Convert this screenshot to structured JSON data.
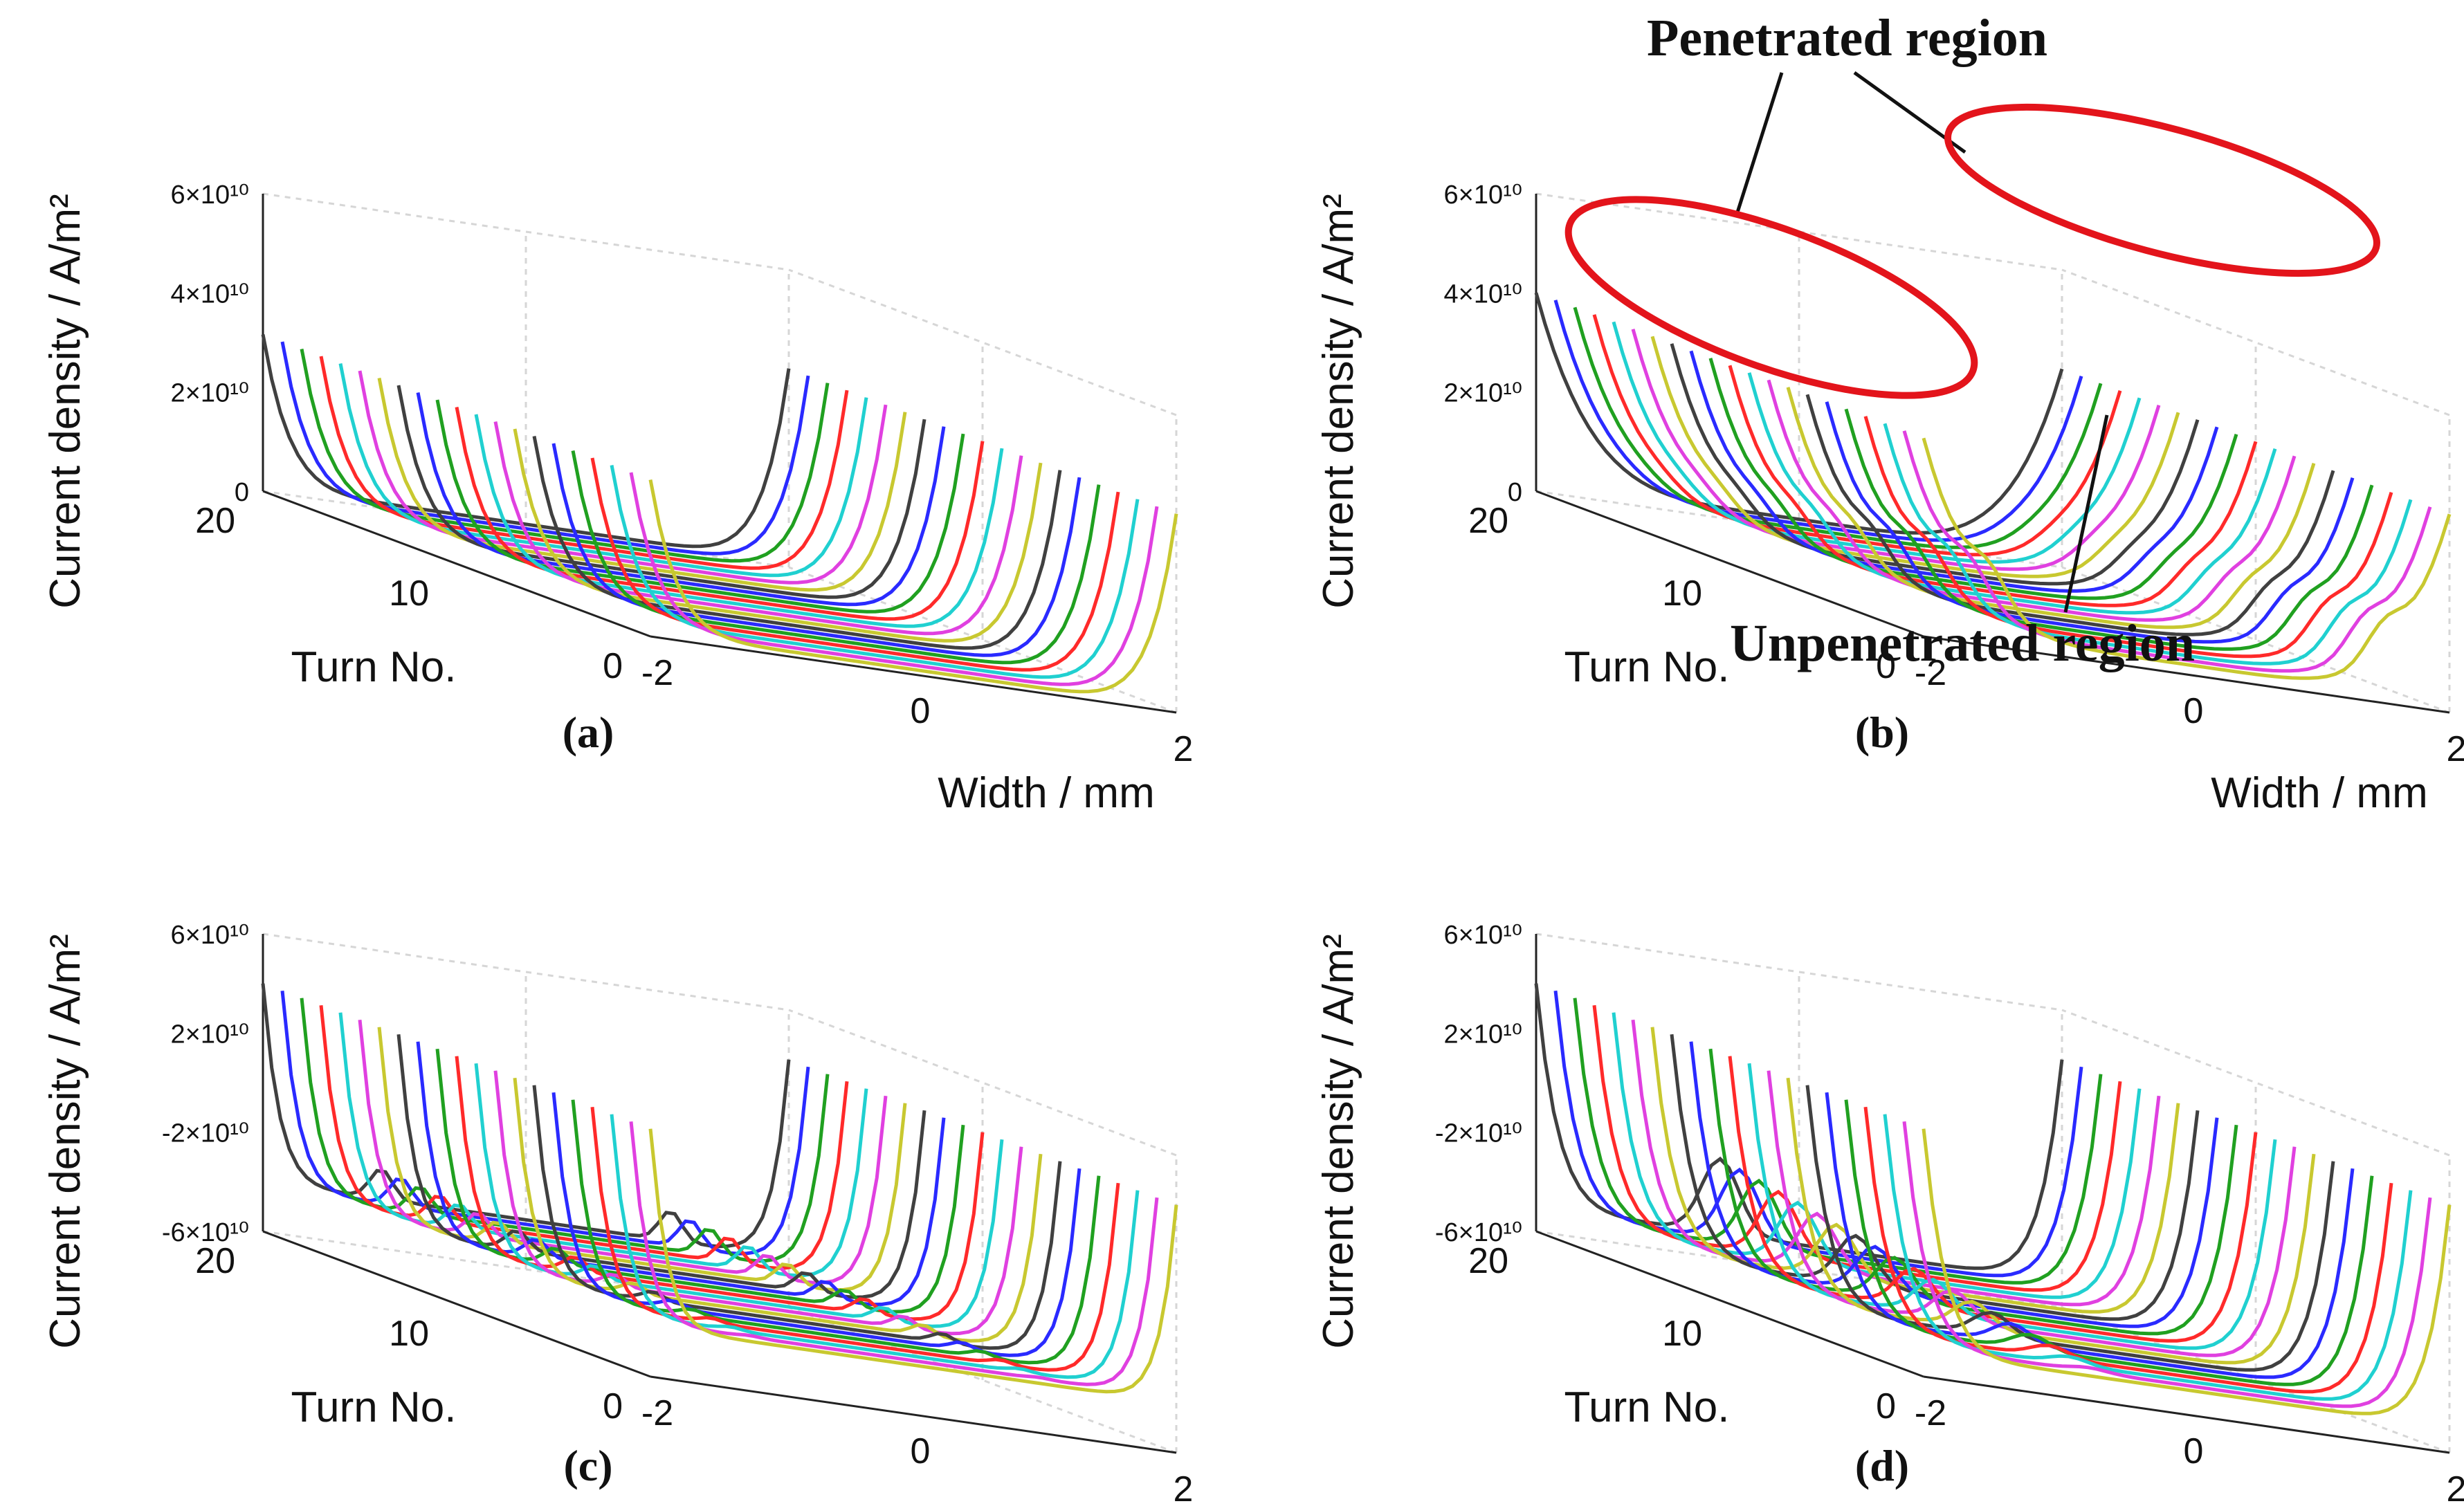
{
  "figure": {
    "annotations": {
      "penetrated_label": "Penetrated region",
      "unpenetrated_label": "Unpenetrated region",
      "ellipse_color": "#e3141b"
    }
  },
  "chart_data": [
    {
      "panel": "(a)",
      "type": "line",
      "projection": "3d",
      "ylabel": "Current density / A/m²",
      "xlabel": "Width / mm",
      "zlabel": "Turn No.",
      "xlim": [
        -2,
        2
      ],
      "zlim": [
        0,
        20
      ],
      "ylim": [
        0,
        60000000000.0
      ],
      "x_ticks": [
        "-2",
        "0",
        "2"
      ],
      "z_ticks": [
        "0",
        "10",
        "20"
      ],
      "y_ticks": [
        "0",
        "2×10¹⁰",
        "4×10¹⁰",
        "6×10¹⁰"
      ],
      "grid": true,
      "series_colors": [
        "#c8c830",
        "#e040e0",
        "#20d0d0",
        "#ff2a2a",
        "#20a020",
        "#2a2aff",
        "#404040"
      ],
      "turns": [
        0,
        20
      ],
      "profile": "U-shaped: edges at 3.5e10 to 5e10, center near 0",
      "edge_value": 35000000000.0,
      "center_value": 1000000000.0
    },
    {
      "panel": "(b)",
      "type": "line",
      "projection": "3d",
      "ylabel": "Current density / A/m²",
      "xlabel": "Width / mm",
      "zlabel": "Turn No.",
      "xlim": [
        -2,
        2
      ],
      "zlim": [
        0,
        20
      ],
      "ylim": [
        0,
        60000000000.0
      ],
      "x_ticks": [
        "-2",
        "0",
        "2"
      ],
      "z_ticks": [
        "0",
        "10",
        "20"
      ],
      "y_ticks": [
        "0",
        "2×10¹⁰",
        "4×10¹⁰",
        "6×10¹⁰"
      ],
      "grid": true,
      "series_colors": [
        "#c8c830",
        "#e040e0",
        "#20d0d0",
        "#ff2a2a",
        "#20a020",
        "#2a2aff",
        "#404040"
      ],
      "turns": [
        0,
        20
      ],
      "edge_value": 40000000000.0,
      "center_value": 2000000000.0
    },
    {
      "panel": "(c)",
      "type": "line",
      "projection": "3d",
      "ylabel": "Current density / A/m²",
      "xlabel": "Width / mm",
      "zlabel": "Turn No.",
      "xlim": [
        -2,
        2
      ],
      "zlim": [
        0,
        20
      ],
      "ylim": [
        -60000000000.0,
        60000000000.0
      ],
      "x_ticks": [
        "-2",
        "0",
        "2"
      ],
      "z_ticks": [
        "0",
        "10",
        "20"
      ],
      "y_ticks": [
        "-6×10¹⁰",
        "-2×10¹⁰",
        "2×10¹⁰",
        "6×10¹⁰"
      ],
      "grid": true,
      "series_colors": [
        "#c8c830",
        "#e040e0",
        "#20d0d0",
        "#ff2a2a",
        "#20a020",
        "#2a2aff",
        "#404040"
      ],
      "turns": [
        0,
        20
      ],
      "edge_value": 40000000000.0,
      "center_value": -40000000000.0
    },
    {
      "panel": "(d)",
      "type": "line",
      "projection": "3d",
      "ylabel": "Current density / A/m²",
      "xlabel": "Width / mm",
      "zlabel": "Turn No.",
      "xlim": [
        -2,
        2
      ],
      "zlim": [
        0,
        20
      ],
      "ylim": [
        -60000000000.0,
        60000000000.0
      ],
      "x_ticks": [
        "-2",
        "0",
        "2"
      ],
      "z_ticks": [
        "0",
        "10",
        "20"
      ],
      "y_ticks": [
        "-6×10¹⁰",
        "-2×10¹⁰",
        "2×10¹⁰",
        "6×10¹⁰"
      ],
      "grid": true,
      "series_colors": [
        "#c8c830",
        "#e040e0",
        "#20d0d0",
        "#ff2a2a",
        "#20a020",
        "#2a2aff",
        "#404040"
      ],
      "turns": [
        0,
        20
      ],
      "edge_value": 40000000000.0,
      "center_value": -50000000000.0
    }
  ]
}
